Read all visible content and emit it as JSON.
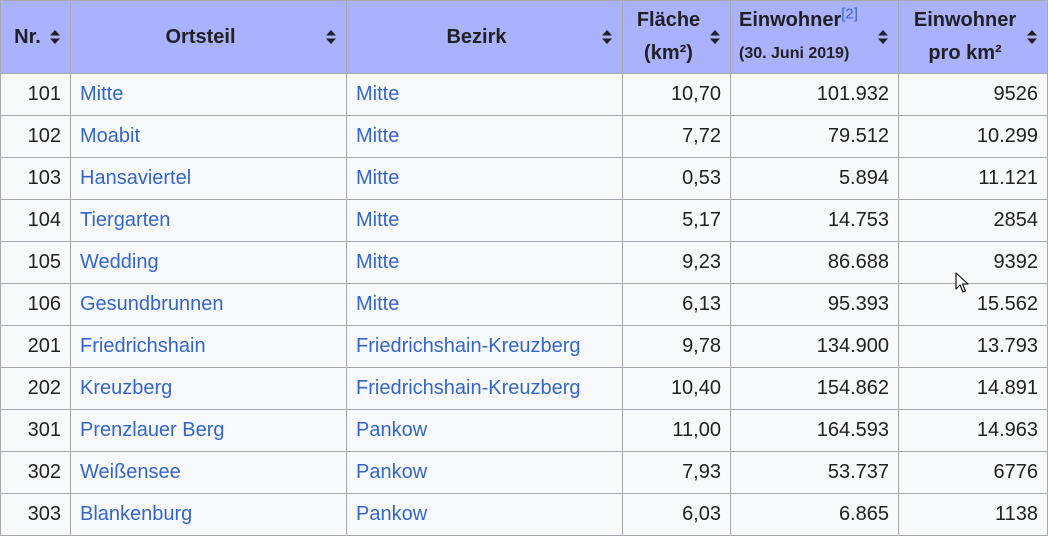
{
  "headers": {
    "nr": "Nr.",
    "ortsteil": "Ortsteil",
    "bezirk": "Bezirk",
    "flaeche_line1": "Fläche",
    "flaeche_line2": "(km²)",
    "einwohner_line1": "Einwohner",
    "einwohner_ref": "[2]",
    "einwohner_line2": "(30. Juni 2019)",
    "dichte_line1": "Einwohner",
    "dichte_line2": "pro km²"
  },
  "icons": {
    "sort": "sort-icon",
    "cursor": "mouse-pointer-icon"
  },
  "colors": {
    "header_bg": "#aab2fd",
    "link": "#3366cc",
    "row_bg": "#f8f9fa",
    "border": "#a2a9b1"
  },
  "rows": [
    {
      "nr": "101",
      "ortsteil": "Mitte",
      "bezirk": "Mitte",
      "flaeche": "10,70",
      "einwohner": "101.932",
      "dichte": "9526"
    },
    {
      "nr": "102",
      "ortsteil": "Moabit",
      "bezirk": "Mitte",
      "flaeche": "7,72",
      "einwohner": "79.512",
      "dichte": "10.299"
    },
    {
      "nr": "103",
      "ortsteil": "Hansaviertel",
      "bezirk": "Mitte",
      "flaeche": "0,53",
      "einwohner": "5.894",
      "dichte": "11.121"
    },
    {
      "nr": "104",
      "ortsteil": "Tiergarten",
      "bezirk": "Mitte",
      "flaeche": "5,17",
      "einwohner": "14.753",
      "dichte": "2854"
    },
    {
      "nr": "105",
      "ortsteil": "Wedding",
      "bezirk": "Mitte",
      "flaeche": "9,23",
      "einwohner": "86.688",
      "dichte": "9392"
    },
    {
      "nr": "106",
      "ortsteil": "Gesundbrunnen",
      "bezirk": "Mitte",
      "flaeche": "6,13",
      "einwohner": "95.393",
      "dichte": "15.562"
    },
    {
      "nr": "201",
      "ortsteil": "Friedrichshain",
      "bezirk": "Friedrichshain-Kreuzberg",
      "flaeche": "9,78",
      "einwohner": "134.900",
      "dichte": "13.793"
    },
    {
      "nr": "202",
      "ortsteil": "Kreuzberg",
      "bezirk": "Friedrichshain-Kreuzberg",
      "flaeche": "10,40",
      "einwohner": "154.862",
      "dichte": "14.891"
    },
    {
      "nr": "301",
      "ortsteil": "Prenzlauer Berg",
      "bezirk": "Pankow",
      "flaeche": "11,00",
      "einwohner": "164.593",
      "dichte": "14.963"
    },
    {
      "nr": "302",
      "ortsteil": "Weißensee",
      "bezirk": "Pankow",
      "flaeche": "7,93",
      "einwohner": "53.737",
      "dichte": "6776"
    },
    {
      "nr": "303",
      "ortsteil": "Blankenburg",
      "bezirk": "Pankow",
      "flaeche": "6,03",
      "einwohner": "6.865",
      "dichte": "1138"
    }
  ]
}
